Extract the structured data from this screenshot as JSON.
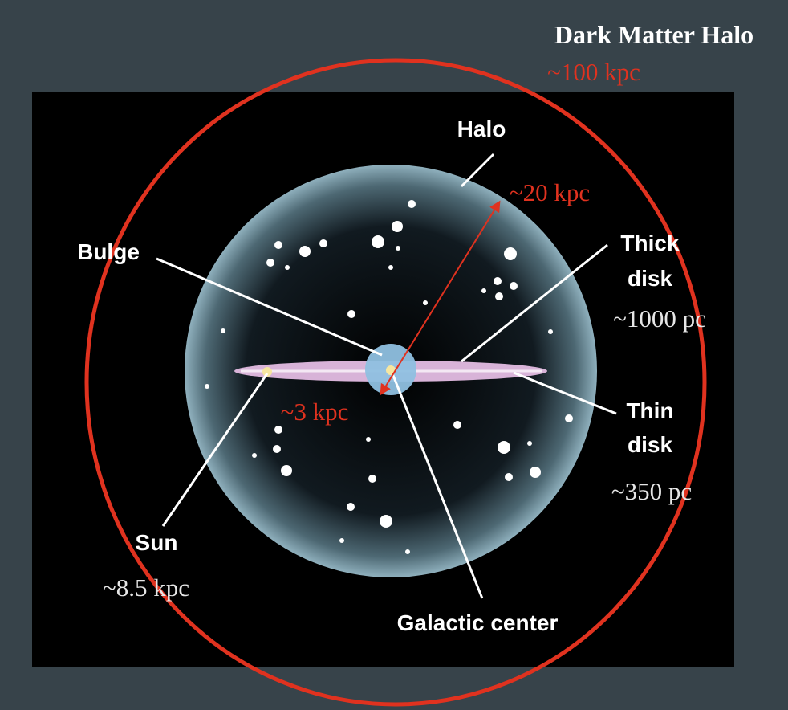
{
  "title": "Dark Matter Halo",
  "title_scale": "~100 kpc",
  "halo": {
    "name": "Halo",
    "scale": "~20 kpc"
  },
  "bulge": {
    "name": "Bulge",
    "scale": "~3 kpc"
  },
  "thick_disk": {
    "name_lines": [
      "Thick",
      "disk"
    ],
    "scale": "~1000 pc"
  },
  "thin_disk": {
    "name_lines": [
      "Thin",
      "disk"
    ],
    "scale": "~350 pc"
  },
  "sun": {
    "name": "Sun",
    "scale": "~8.5 kpc"
  },
  "galactic_center": {
    "name": "Galactic center"
  }
}
